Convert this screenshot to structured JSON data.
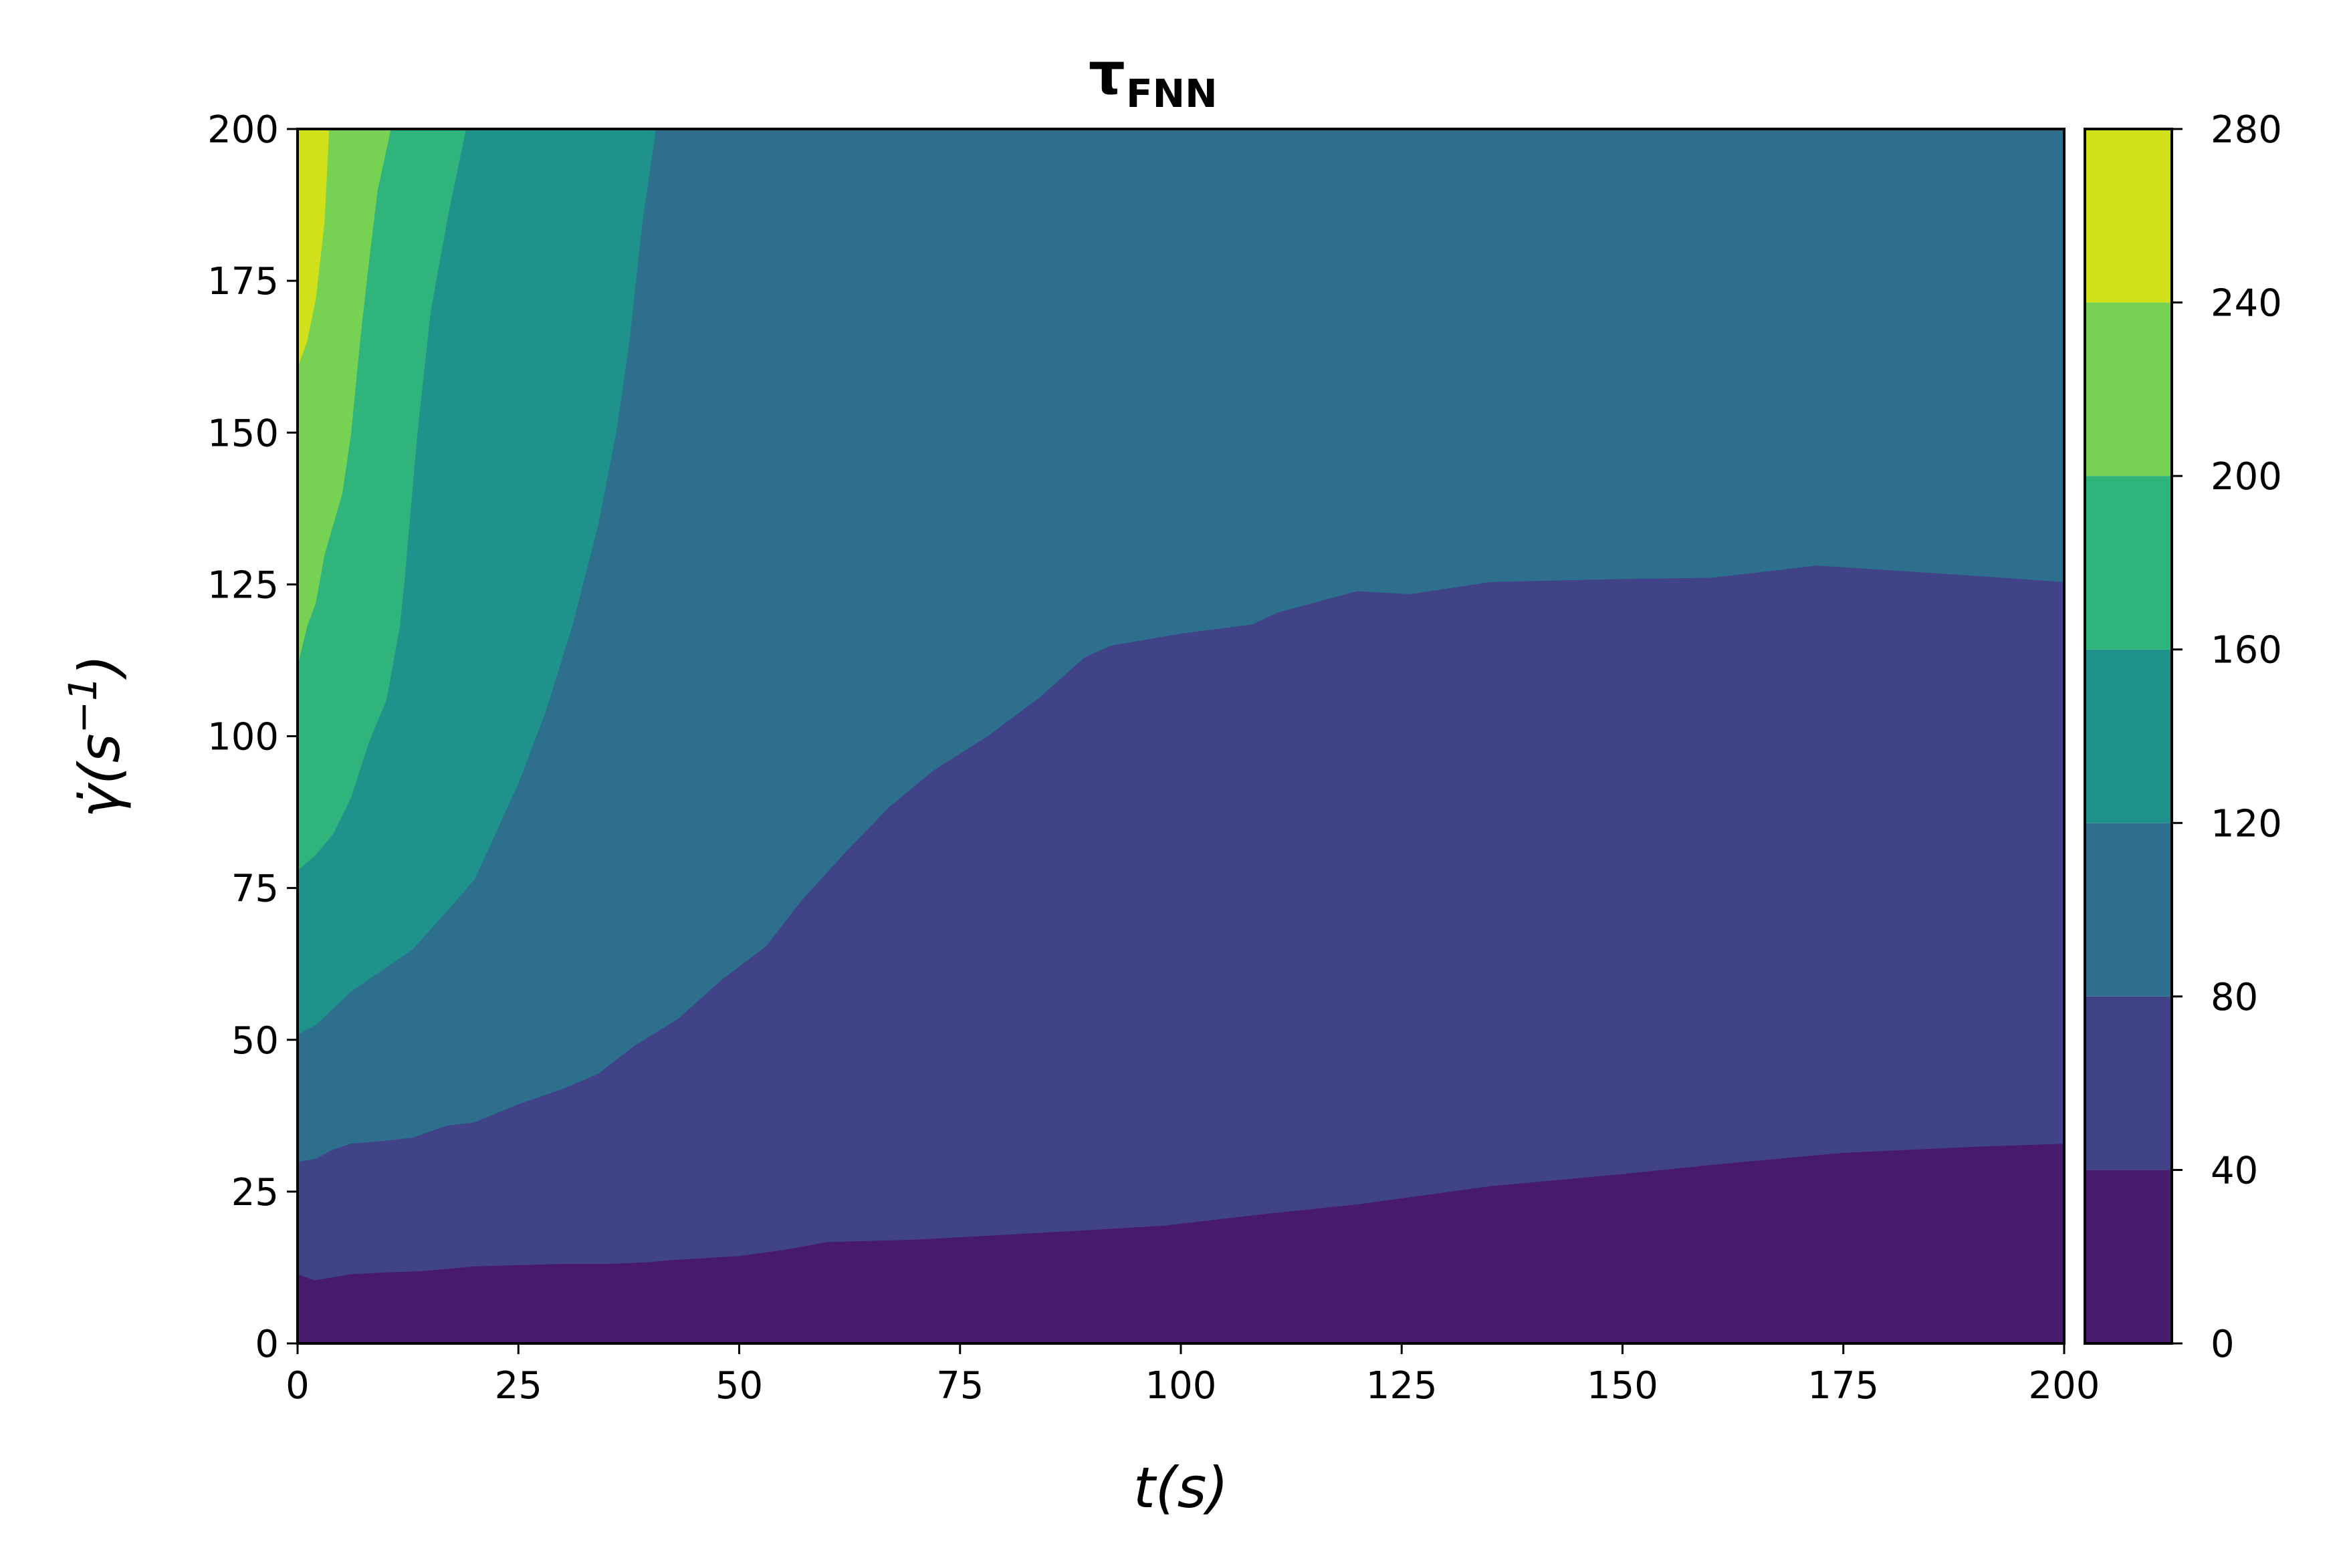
{
  "chart_data": {
    "type": "heatmap",
    "subtype": "filled-contour",
    "title": {
      "main": "τ",
      "subscript": "FNN"
    },
    "xlabel": "t(s)",
    "ylabel": {
      "base": "γ̇(s",
      "superscript": "−1",
      "close": ")"
    },
    "xlim": [
      0,
      200
    ],
    "ylim": [
      0,
      200
    ],
    "xticks": [
      0,
      25,
      50,
      75,
      100,
      125,
      150,
      175,
      200
    ],
    "yticks": [
      0,
      25,
      50,
      75,
      100,
      125,
      150,
      175,
      200
    ],
    "colorbar": {
      "levels": [
        0,
        40,
        80,
        120,
        160,
        200,
        240,
        280
      ],
      "ticks": [
        0,
        40,
        80,
        120,
        160,
        200,
        240,
        280
      ],
      "colors": [
        "#481a6c",
        "#404387",
        "#2e6f8e",
        "#20928c",
        "#2fb47c",
        "#77d153",
        "#d0e11c"
      ]
    },
    "contour_boundaries": [
      {
        "level": 40,
        "points": [
          [
            0,
            11.5
          ],
          [
            2,
            10.5
          ],
          [
            6,
            11.5
          ],
          [
            10,
            11.8
          ],
          [
            14,
            12
          ],
          [
            20,
            12.8
          ],
          [
            30,
            13.2
          ],
          [
            35,
            13.2
          ],
          [
            40,
            13.5
          ],
          [
            42,
            13.8
          ],
          [
            50,
            14.5
          ],
          [
            55,
            15.5
          ],
          [
            60,
            16.8
          ],
          [
            70,
            17.2
          ],
          [
            80,
            18
          ],
          [
            90,
            18.8
          ],
          [
            98,
            19.5
          ],
          [
            110,
            21.5
          ],
          [
            120,
            23
          ],
          [
            135,
            26
          ],
          [
            150,
            28
          ],
          [
            160,
            29.5
          ],
          [
            175,
            31.5
          ],
          [
            190,
            32.5
          ],
          [
            200,
            33
          ]
        ]
      },
      {
        "level": 80,
        "points": [
          [
            0,
            30
          ],
          [
            2,
            30.5
          ],
          [
            4,
            32
          ],
          [
            6,
            33
          ],
          [
            10,
            33.5
          ],
          [
            13,
            34
          ],
          [
            17,
            36
          ],
          [
            20,
            36.5
          ],
          [
            25,
            39.5
          ],
          [
            30,
            42
          ],
          [
            34,
            44.5
          ],
          [
            38,
            49
          ],
          [
            43,
            53.5
          ],
          [
            48,
            60
          ],
          [
            53,
            65.5
          ],
          [
            57,
            73
          ],
          [
            62,
            81
          ],
          [
            67,
            88.5
          ],
          [
            72,
            94.5
          ],
          [
            78,
            100
          ],
          [
            84,
            106.5
          ],
          [
            89,
            113
          ],
          [
            92,
            115
          ],
          [
            100,
            117
          ],
          [
            108,
            118.5
          ],
          [
            111,
            120.5
          ],
          [
            120,
            124
          ],
          [
            126,
            123.5
          ],
          [
            135,
            125.5
          ],
          [
            150,
            126
          ],
          [
            160,
            126.2
          ],
          [
            172,
            128.2
          ],
          [
            185,
            127
          ],
          [
            200,
            125.5
          ]
        ]
      },
      {
        "level": 120,
        "points": [
          [
            0,
            51
          ],
          [
            2,
            52.5
          ],
          [
            6,
            58
          ],
          [
            10,
            62
          ],
          [
            13,
            65
          ],
          [
            17,
            71.5
          ],
          [
            20,
            76.5
          ],
          [
            25,
            92.5
          ],
          [
            28,
            104
          ],
          [
            31,
            118
          ],
          [
            34,
            135
          ],
          [
            36,
            150
          ],
          [
            37.5,
            165
          ],
          [
            39,
            185
          ],
          [
            40.5,
            200
          ]
        ]
      },
      {
        "level": 160,
        "points": [
          [
            0,
            78
          ],
          [
            2,
            80.5
          ],
          [
            4,
            84
          ],
          [
            6,
            90
          ],
          [
            8,
            99
          ],
          [
            10,
            106
          ],
          [
            11.5,
            118
          ],
          [
            12,
            125
          ],
          [
            13.5,
            150
          ],
          [
            15,
            170
          ],
          [
            17,
            186
          ],
          [
            19,
            200
          ]
        ]
      },
      {
        "level": 200,
        "points": [
          [
            0,
            112
          ],
          [
            1,
            118
          ],
          [
            2,
            122
          ],
          [
            3,
            130
          ],
          [
            5,
            140
          ],
          [
            6,
            150
          ],
          [
            7,
            165
          ],
          [
            8,
            178
          ],
          [
            9,
            190
          ],
          [
            10.5,
            200
          ]
        ]
      },
      {
        "level": 240,
        "points": [
          [
            0,
            161
          ],
          [
            1,
            165
          ],
          [
            2,
            172
          ],
          [
            3,
            185
          ],
          [
            3.5,
            200
          ]
        ]
      }
    ]
  }
}
